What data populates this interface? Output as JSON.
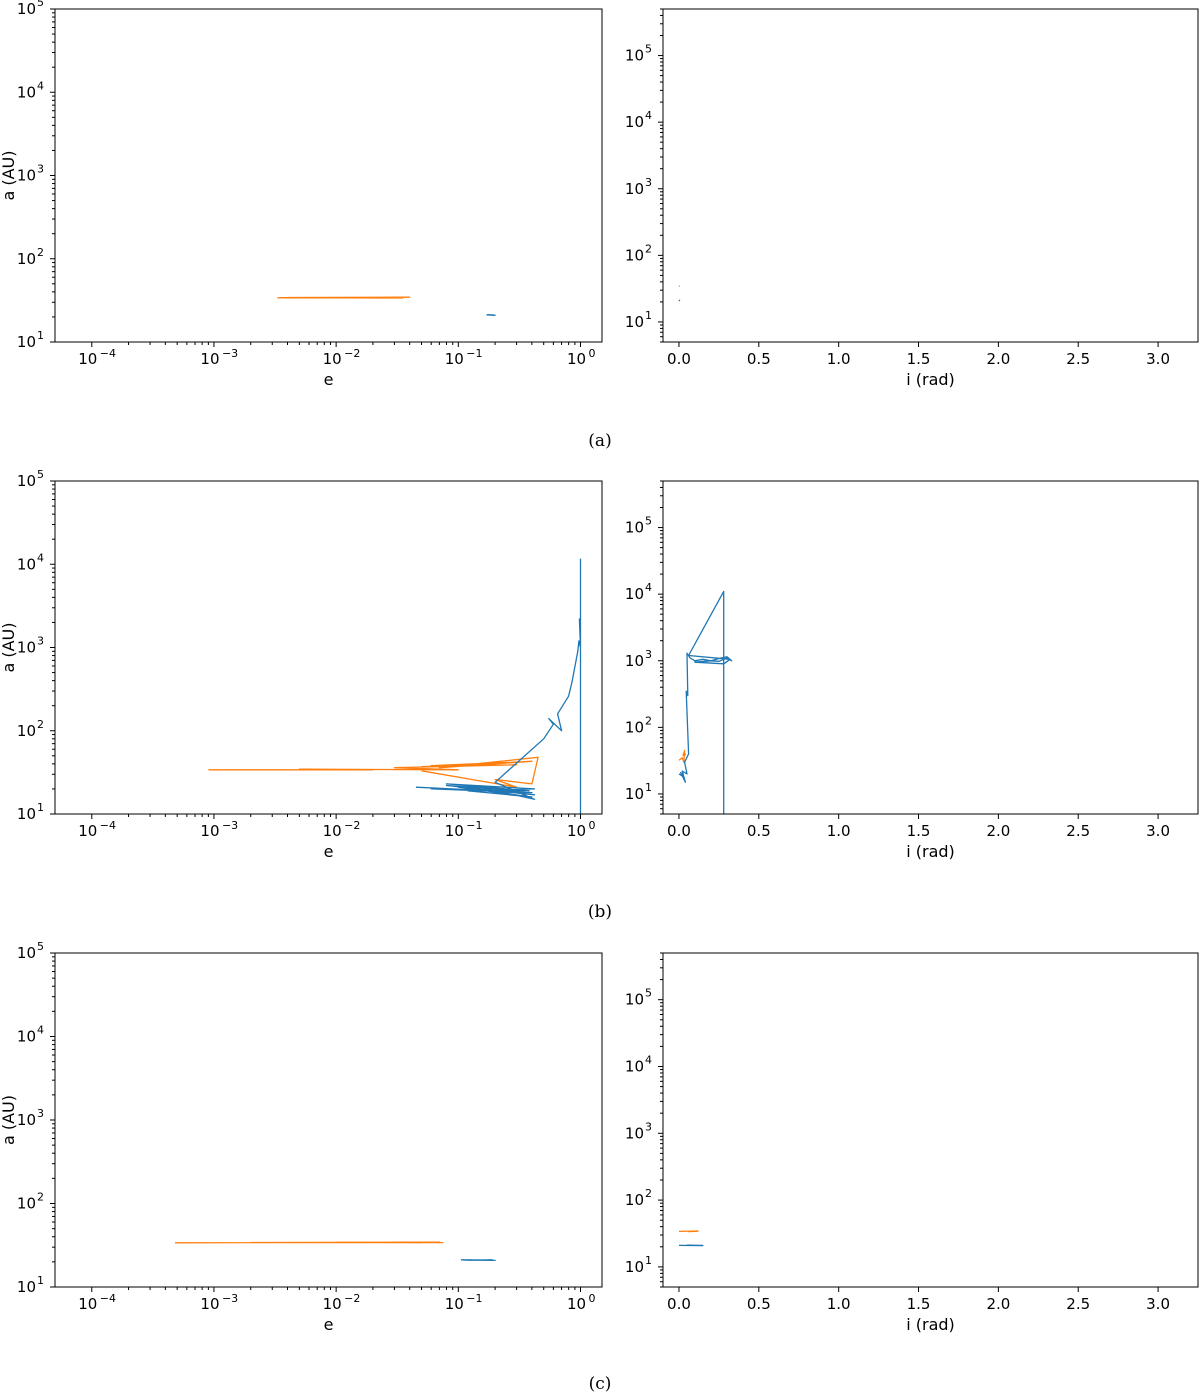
{
  "colors": {
    "orange": "#ff7f0e",
    "blue": "#1f77b4"
  },
  "captions": [
    "(a)",
    "(b)",
    "(c)"
  ],
  "axis_text": {
    "e_label": "e",
    "i_label": "i (rad)",
    "a_label": "a (AU)",
    "e_ticks": [
      "10",
      "10",
      "10",
      "10",
      "10"
    ],
    "e_tick_exp": [
      "-4",
      "-3",
      "-2",
      "-1",
      "0"
    ],
    "a_ticks": [
      "10",
      "10",
      "10",
      "10",
      "10"
    ],
    "a_tick_exp": [
      "1",
      "2",
      "3",
      "4",
      "5"
    ],
    "i_ticks": [
      "0.0",
      "0.5",
      "1.0",
      "1.5",
      "2.0",
      "2.5",
      "3.0"
    ]
  },
  "chart_data": [
    {
      "panel": "(a) left",
      "type": "line",
      "xlabel": "e",
      "ylabel": "a (AU)",
      "xscale": "log",
      "yscale": "log",
      "xlim": [
        5e-05,
        1.5
      ],
      "ylim": [
        10,
        100000
      ],
      "series": [
        {
          "color": "orange",
          "x": [
            0.0033,
            0.04,
            0.004,
            0.035,
            0.0035
          ],
          "y": [
            34,
            34.5,
            34.2,
            33.8,
            34.1
          ]
        },
        {
          "color": "blue",
          "x": [
            0.17,
            0.2,
            0.175,
            0.195
          ],
          "y": [
            21.2,
            21,
            21.3,
            20.9
          ]
        }
      ]
    },
    {
      "panel": "(a) right",
      "type": "line",
      "xlabel": "i (rad)",
      "ylabel": "",
      "xscale": "linear",
      "yscale": "log",
      "xlim": [
        -0.1,
        3.25
      ],
      "ylim": [
        5,
        500000
      ],
      "series": [
        {
          "color": "orange",
          "x": [
            0.0,
            0.005
          ],
          "y": [
            34,
            35
          ]
        },
        {
          "color": "blue",
          "x": [
            0.0,
            0.005
          ],
          "y": [
            20.5,
            21.5
          ]
        }
      ]
    },
    {
      "panel": "(b) left",
      "type": "line",
      "xlabel": "e",
      "ylabel": "a (AU)",
      "xscale": "log",
      "yscale": "log",
      "xlim": [
        5e-05,
        1.5
      ],
      "ylim": [
        10,
        100000
      ],
      "series": [
        {
          "color": "orange",
          "x": [
            0.0009,
            0.02,
            0.005,
            0.1,
            0.03,
            0.3,
            0.05,
            0.2,
            0.06,
            0.4,
            0.07,
            0.45,
            0.4,
            0.2,
            0.3,
            0.05
          ],
          "y": [
            34,
            34,
            34.5,
            34,
            36,
            39,
            37,
            40,
            38,
            43,
            36,
            48,
            23,
            26,
            21,
            33
          ]
        },
        {
          "color": "blue",
          "x": [
            0.045,
            0.4,
            0.06,
            0.35,
            0.08,
            0.42,
            0.1,
            0.4,
            0.12,
            0.42,
            0.08,
            0.38,
            0.15,
            0.42,
            0.2,
            0.5,
            0.6,
            0.55,
            0.7,
            0.65,
            0.8,
            0.85,
            0.95,
            0.97,
            1.0,
            0.98,
            1.0,
            1.0,
            1.0,
            1.0,
            1.0
          ],
          "y": [
            21,
            18,
            20,
            19,
            22,
            17,
            21,
            16,
            19,
            20,
            23,
            19,
            21,
            15,
            24,
            80,
            120,
            140,
            100,
            160,
            260,
            380,
            900,
            1200,
            1000,
            2200,
            1100,
            11500,
            10,
            10,
            11500
          ]
        }
      ]
    },
    {
      "panel": "(b) right",
      "type": "line",
      "xlabel": "i (rad)",
      "ylabel": "",
      "xscale": "linear",
      "yscale": "log",
      "xlim": [
        -0.1,
        3.25
      ],
      "ylim": [
        5,
        500000
      ],
      "series": [
        {
          "color": "orange",
          "x": [
            0.0,
            0.02,
            0.03,
            0.035,
            0.025,
            0.04,
            0.03
          ],
          "y": [
            32,
            35,
            30,
            45,
            38,
            40,
            36
          ]
        },
        {
          "color": "blue",
          "x": [
            0.0,
            0.03,
            0.01,
            0.04,
            0.02,
            0.05,
            0.035,
            0.06,
            0.045,
            0.055,
            0.05,
            0.07,
            0.1,
            0.15,
            0.2,
            0.25,
            0.3,
            0.33,
            0.3,
            0.25,
            0.2,
            0.1,
            0.28,
            0.32,
            0.06,
            0.28,
            0.28,
            0.28
          ],
          "y": [
            20,
            18,
            21,
            15,
            22,
            20,
            30,
            40,
            350,
            300,
            1300,
            1100,
            1000,
            1050,
            1000,
            980,
            1100,
            1000,
            1150,
            1080,
            1000,
            950,
            900,
            1050,
            1200,
            11000,
            5,
            11000
          ]
        }
      ]
    },
    {
      "panel": "(c) left",
      "type": "line",
      "xlabel": "e",
      "ylabel": "a (AU)",
      "xscale": "log",
      "yscale": "log",
      "xlim": [
        5e-05,
        1.5
      ],
      "ylim": [
        10,
        100000
      ],
      "series": [
        {
          "color": "orange",
          "x": [
            0.00048,
            0.07,
            0.002,
            0.075,
            0.01,
            0.05
          ],
          "y": [
            33.8,
            34.5,
            34.1,
            34.0,
            34.3,
            33.9
          ]
        },
        {
          "color": "blue",
          "x": [
            0.105,
            0.2,
            0.11,
            0.19,
            0.12
          ],
          "y": [
            21.2,
            20.8,
            21.0,
            21.1,
            20.9
          ]
        }
      ]
    },
    {
      "panel": "(c) right",
      "type": "line",
      "xlabel": "i (rad)",
      "ylabel": "",
      "xscale": "linear",
      "yscale": "log",
      "xlim": [
        -0.1,
        3.25
      ],
      "ylim": [
        5,
        500000
      ],
      "series": [
        {
          "color": "orange",
          "x": [
            0.0,
            0.12,
            0.06,
            0.12
          ],
          "y": [
            34,
            34.5,
            33.8,
            34.2
          ]
        },
        {
          "color": "blue",
          "x": [
            0.0,
            0.15,
            0.05,
            0.15
          ],
          "y": [
            21,
            20.8,
            21.2,
            21
          ]
        }
      ]
    }
  ]
}
